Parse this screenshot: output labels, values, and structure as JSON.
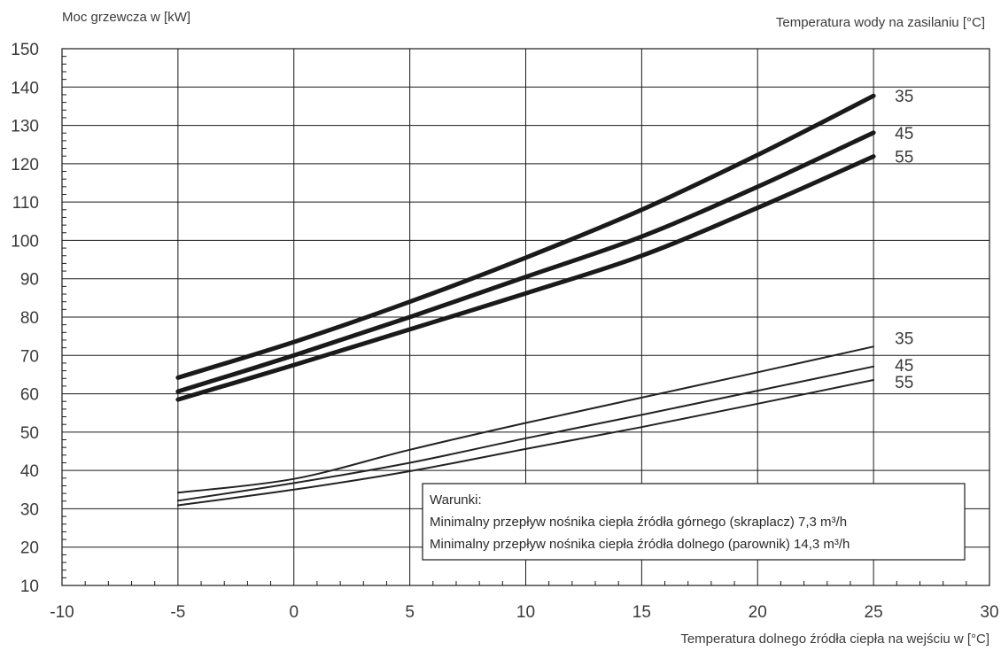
{
  "chart_data": {
    "type": "line",
    "ylabel": "Moc grzewcza w [kW]",
    "legend_title": "Temperatura wody na zasilaniu [°C]",
    "xlabel": "Temperatura dolnego źródła ciepła na wejściu w [°C]",
    "xlim": [
      -10,
      30
    ],
    "ylim": [
      10,
      150
    ],
    "x_ticks": [
      -10,
      -5,
      0,
      5,
      10,
      15,
      20,
      25,
      30
    ],
    "y_ticks": [
      10,
      20,
      30,
      40,
      50,
      60,
      70,
      80,
      90,
      100,
      110,
      120,
      130,
      140,
      150
    ],
    "grid": true,
    "x": [
      -5,
      0,
      5,
      10,
      15,
      20,
      25
    ],
    "series": [
      {
        "name": "35",
        "weight": "bold",
        "values": [
          64.2,
          73.5,
          84.0,
          95.5,
          108.0,
          122.3,
          137.7
        ]
      },
      {
        "name": "45",
        "weight": "bold",
        "values": [
          60.6,
          70.0,
          80.0,
          90.5,
          101.0,
          114.0,
          128.1
        ]
      },
      {
        "name": "55",
        "weight": "bold",
        "values": [
          58.5,
          67.5,
          76.8,
          86.2,
          96.0,
          108.5,
          121.9
        ]
      },
      {
        "name": "35",
        "weight": "thin",
        "values": [
          34.2,
          37.8,
          45.4,
          52.4,
          59.0,
          65.6,
          72.3
        ]
      },
      {
        "name": "45",
        "weight": "thin",
        "values": [
          32.1,
          36.7,
          42.0,
          48.4,
          54.5,
          60.8,
          67.1
        ]
      },
      {
        "name": "55",
        "weight": "thin",
        "values": [
          30.9,
          35.0,
          39.8,
          45.6,
          51.3,
          57.4,
          63.6
        ]
      }
    ],
    "annotation": {
      "title": "Warunki:",
      "lines": [
        "Minimalny przepływ nośnika ciepła źródła górnego (skraplacz) 7,3 m³/h",
        "Minimalny przepływ nośnika ciepła źródła dolnego (parownik) 14,3 m³/h"
      ]
    }
  }
}
